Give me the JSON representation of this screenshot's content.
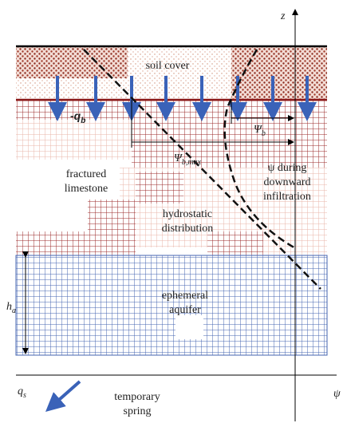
{
  "labels": {
    "z_axis": "z",
    "psi_axis": "ψ",
    "soil_cover": "soil cover",
    "q_b": {
      "main": "-q",
      "sub": "b"
    },
    "psi_b": {
      "main": "Ψ",
      "sub": "b"
    },
    "psi_b_max": {
      "main": "Ψ",
      "sub": "b,max"
    },
    "psi_infiltration": [
      "ψ  during",
      "downward",
      "infiltration"
    ],
    "fractured_limestone": [
      "fractured",
      "limestone"
    ],
    "hydrostatic": [
      "hydrostatic",
      "distribution"
    ],
    "h_a": {
      "main": "h",
      "sub": "a"
    },
    "aquifer": [
      "ephemeral",
      "aquifer"
    ],
    "q_s": {
      "main": "q",
      "sub": "s"
    },
    "spring": [
      "temporary",
      "spring"
    ]
  }
}
